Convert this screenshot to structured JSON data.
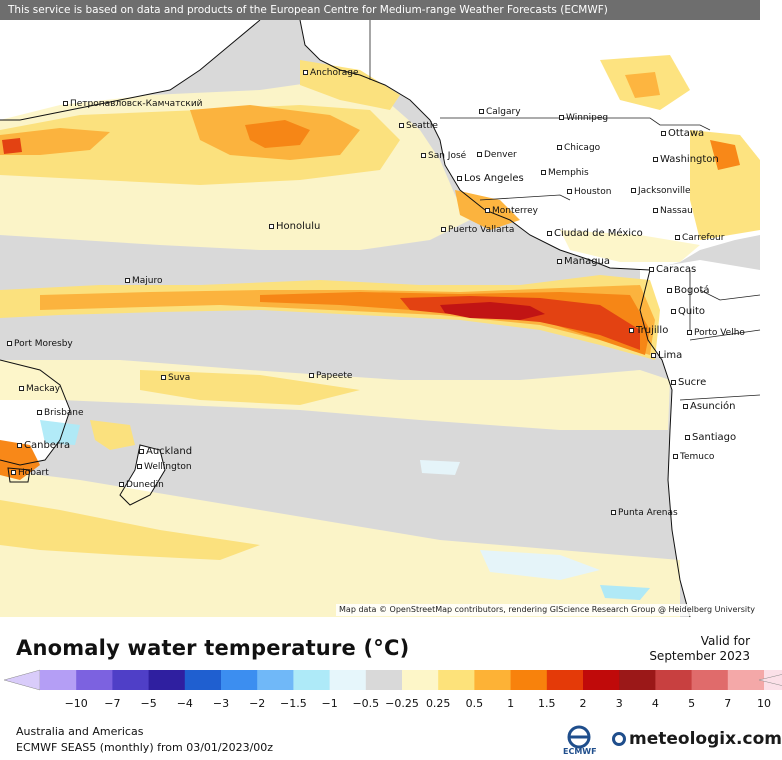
{
  "top_bar": {
    "text": "This service is based on data and products of the European Centre for Medium-range Weather Forecasts (ECMWF)"
  },
  "map_credit": "Map data © OpenStreetMap contributors, rendering GIScience Research Group @ Heidelberg University",
  "cities": [
    {
      "name": "Anchorage"
    },
    {
      "name": "Петропавловск-Камчатский"
    },
    {
      "name": "Calgary"
    },
    {
      "name": "Winnipeg"
    },
    {
      "name": "Seattle"
    },
    {
      "name": "Ottawa"
    },
    {
      "name": "San José"
    },
    {
      "name": "Denver"
    },
    {
      "name": "Chicago"
    },
    {
      "name": "Washington"
    },
    {
      "name": "Memphis"
    },
    {
      "name": "Los Angeles"
    },
    {
      "name": "Jacksonville"
    },
    {
      "name": "Houston"
    },
    {
      "name": "Monterrey"
    },
    {
      "name": "Nassau"
    },
    {
      "name": "Honolulu"
    },
    {
      "name": "Puerto Vallarta"
    },
    {
      "name": "Ciudad de México"
    },
    {
      "name": "Carrefour"
    },
    {
      "name": "Managua"
    },
    {
      "name": "Caracas"
    },
    {
      "name": "Majuro"
    },
    {
      "name": "Bogotá"
    },
    {
      "name": "Quito"
    },
    {
      "name": "Trujillo"
    },
    {
      "name": "Porto Velho"
    },
    {
      "name": "Port Moresby"
    },
    {
      "name": "Lima"
    },
    {
      "name": "Suva"
    },
    {
      "name": "Papeete"
    },
    {
      "name": "Sucre"
    },
    {
      "name": "Mackay"
    },
    {
      "name": "Asunción"
    },
    {
      "name": "Brisbane"
    },
    {
      "name": "Santiago"
    },
    {
      "name": "Canberra"
    },
    {
      "name": "Auckland"
    },
    {
      "name": "Temuco"
    },
    {
      "name": "Wellington"
    },
    {
      "name": "Hobart"
    },
    {
      "name": "Dunedin"
    },
    {
      "name": "Punta Arenas"
    }
  ],
  "legend": {
    "title": "Anomaly water temperature (°C)",
    "valid_for_label": "Valid for",
    "valid_for_date": "September 2023",
    "ticks": [
      "−10",
      "−7",
      "−5",
      "−4",
      "−3",
      "−2",
      "−1.5",
      "−1",
      "−0.5",
      "−0.25",
      "0.25",
      "0.5",
      "1",
      "1.5",
      "2",
      "3",
      "4",
      "5",
      "7",
      "10"
    ],
    "colors": [
      "#b49ef5",
      "#7c62e0",
      "#4f3fc7",
      "#2f1fa0",
      "#1f5fd0",
      "#3c8ef0",
      "#70b8f8",
      "#aeeaf8",
      "#e6f6fb",
      "#d9d9d9",
      "#fdf6c8",
      "#fde27a",
      "#fdb236",
      "#f8820c",
      "#e43a08",
      "#c00a0a",
      "#9b1818",
      "#c84040",
      "#e06b6b",
      "#f4a8a8",
      "#fbe0e8"
    ]
  },
  "footer": {
    "region": "Australia and Americas",
    "model": "ECMWF SEAS5 (monthly) from 03/01/2023/00z"
  },
  "logos": {
    "ecmwf": "ECMWF",
    "meteologix": "meteologix.com"
  }
}
